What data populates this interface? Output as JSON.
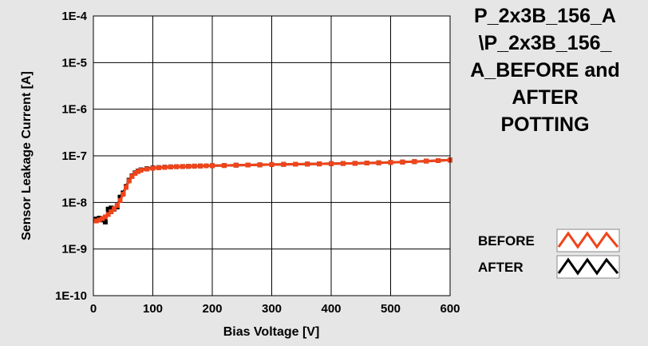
{
  "chart_data": {
    "type": "line",
    "title_lines": [
      "P_2x3B_156_A",
      "\\P_2x3B_156_",
      "A_BEFORE and",
      "AFTER",
      "POTTING"
    ],
    "xlabel": "Bias Voltage [V]",
    "ylabel": "Sensor Leakage Current [A]",
    "xlim": [
      0,
      600
    ],
    "ylim": [
      1e-10,
      0.0001
    ],
    "yscale": "log",
    "grid": true,
    "legend_position": "bottom-right",
    "x_ticks": [
      0,
      100,
      200,
      300,
      400,
      500,
      600
    ],
    "x_tick_labels": [
      "0",
      "100",
      "200",
      "300",
      "400",
      "500",
      "600"
    ],
    "y_ticks": [
      0.0001,
      1e-05,
      1e-06,
      1e-07,
      1e-08,
      1e-09,
      1e-10
    ],
    "y_tick_labels": [
      "1E-4",
      "1E-5",
      "1E-6",
      "1E-7",
      "1E-8",
      "1E-9",
      "1E-10"
    ],
    "series": [
      {
        "name": "BEFORE",
        "color": "#f0441a",
        "x": [
          5,
          10,
          15,
          20,
          25,
          30,
          35,
          40,
          45,
          50,
          55,
          60,
          65,
          70,
          75,
          80,
          90,
          100,
          110,
          120,
          130,
          140,
          150,
          160,
          170,
          180,
          190,
          200,
          220,
          240,
          260,
          280,
          300,
          320,
          340,
          360,
          380,
          400,
          420,
          440,
          460,
          480,
          500,
          520,
          540,
          560,
          580,
          600
        ],
        "y": [
          4e-09,
          4.2e-09,
          4.5e-09,
          4.9e-09,
          5.5e-09,
          6.3e-09,
          7.3e-09,
          8.6e-09,
          1.1e-08,
          1.5e-08,
          2.1e-08,
          2.9e-08,
          3.6e-08,
          4.2e-08,
          4.6e-08,
          4.9e-08,
          5.2e-08,
          5.4e-08,
          5.55e-08,
          5.65e-08,
          5.75e-08,
          5.85e-08,
          5.9e-08,
          5.95e-08,
          6e-08,
          6.05e-08,
          6.1e-08,
          6.15e-08,
          6.2e-08,
          6.3e-08,
          6.35e-08,
          6.4e-08,
          6.5e-08,
          6.55e-08,
          6.6e-08,
          6.65e-08,
          6.7e-08,
          6.8e-08,
          6.85e-08,
          6.9e-08,
          7e-08,
          7.1e-08,
          7.2e-08,
          7.35e-08,
          7.5e-08,
          7.7e-08,
          7.9e-08,
          8.1e-08
        ]
      },
      {
        "name": "AFTER",
        "color": "#000000",
        "x": [
          5,
          10,
          15,
          20,
          25,
          30,
          35,
          40,
          45,
          50,
          55,
          60,
          65,
          70,
          75,
          80,
          90,
          100,
          110,
          120,
          130,
          140,
          150,
          160,
          170,
          180,
          190,
          200,
          220,
          240,
          260,
          280,
          300,
          320,
          340,
          360,
          380,
          400,
          420,
          440,
          460,
          480,
          500,
          520,
          540,
          560,
          580,
          600
        ],
        "y": [
          4.4e-09,
          4.6e-09,
          4.2e-09,
          3.8e-09,
          7.2e-09,
          7.6e-09,
          7.2e-09,
          8e-09,
          1.3e-08,
          1.6e-08,
          2.2e-08,
          3e-08,
          3.7e-08,
          4.3e-08,
          4.7e-08,
          5e-08,
          5.3e-08,
          5.5e-08,
          5.6e-08,
          5.7e-08,
          5.8e-08,
          5.85e-08,
          5.9e-08,
          5.95e-08,
          6e-08,
          6.05e-08,
          6.1e-08,
          6.15e-08,
          6.2e-08,
          6.3e-08,
          6.35e-08,
          6.4e-08,
          6.5e-08,
          6.55e-08,
          6.6e-08,
          6.65e-08,
          6.7e-08,
          6.8e-08,
          6.85e-08,
          6.9e-08,
          7e-08,
          7.1e-08,
          7.2e-08,
          7.35e-08,
          7.5e-08,
          7.7e-08,
          7.9e-08,
          8.1e-08
        ]
      }
    ]
  }
}
